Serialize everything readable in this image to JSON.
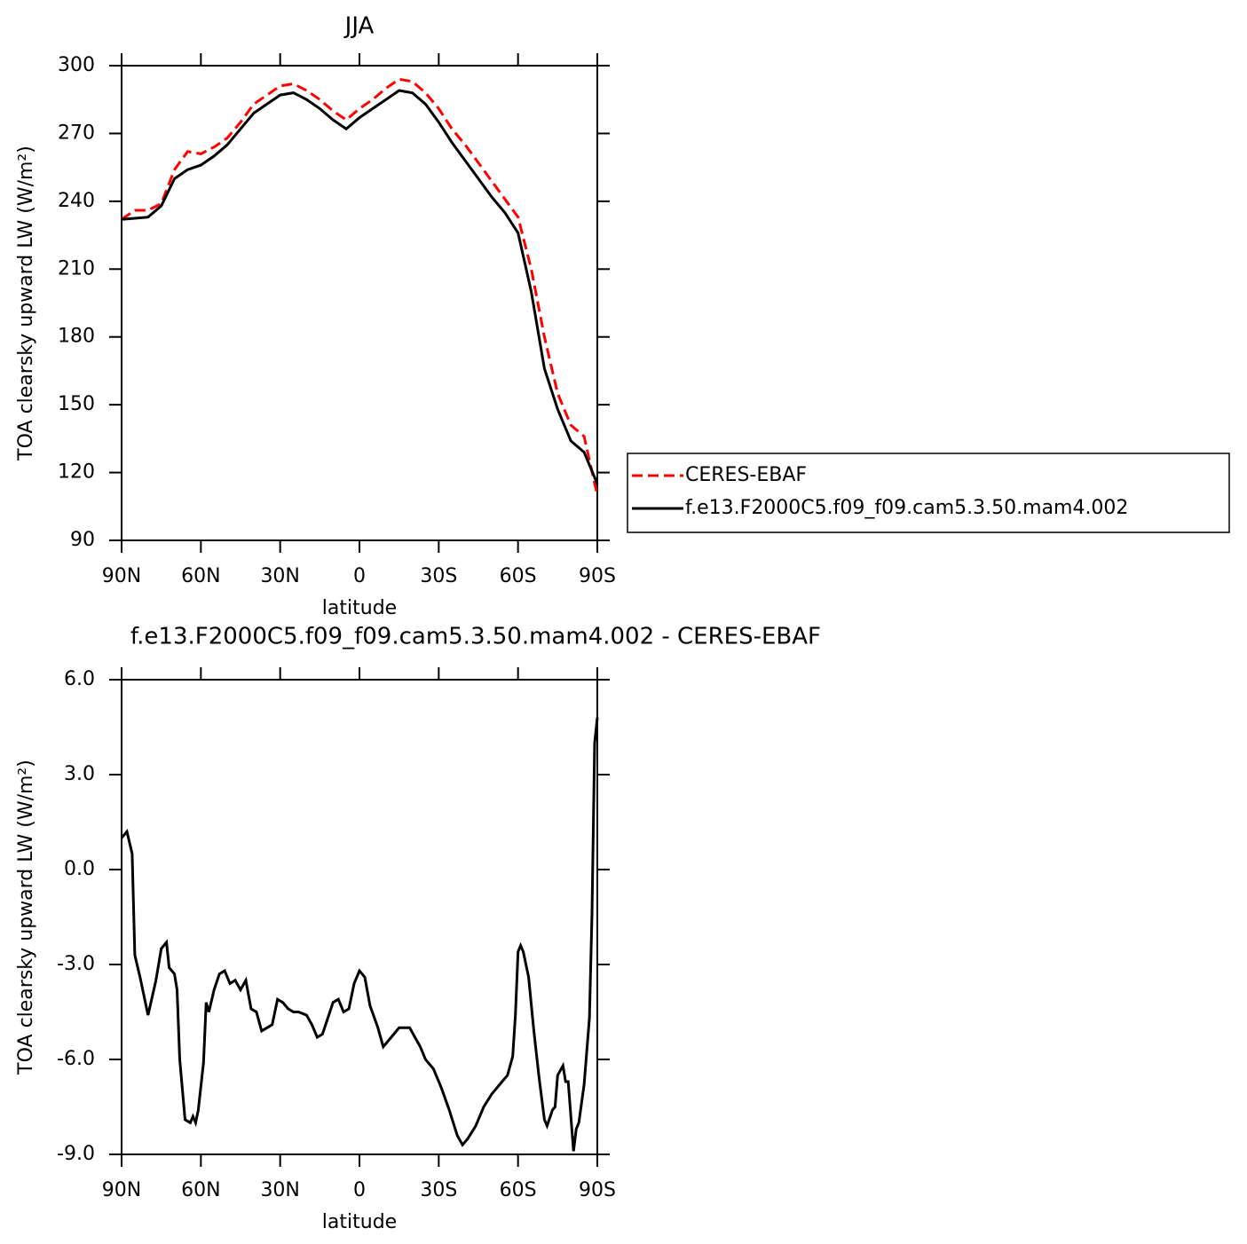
{
  "chart_data": [
    {
      "type": "line",
      "title": "JJA",
      "xlabel": "latitude",
      "ylabel": "TOA clearsky upward LW (W/m²)",
      "x": [
        90,
        85,
        80,
        75,
        70,
        65,
        60,
        55,
        50,
        45,
        40,
        35,
        30,
        25,
        20,
        15,
        10,
        5,
        0,
        -5,
        -10,
        -15,
        -20,
        -25,
        -30,
        -35,
        -40,
        -45,
        -50,
        -55,
        -60,
        -65,
        -70,
        -75,
        -80,
        -85,
        -90
      ],
      "series": [
        {
          "name": "CERES-EBAF",
          "color": "#ff0000",
          "linestyle": "dashed",
          "values": [
            232,
            236,
            236,
            239,
            254,
            262,
            261,
            264,
            268,
            275,
            283,
            287,
            291,
            292,
            289,
            285,
            280,
            276,
            281,
            285,
            290,
            294,
            293,
            288,
            281,
            272,
            265,
            257,
            249,
            241,
            233,
            210,
            180,
            155,
            141,
            136,
            110
          ]
        },
        {
          "name": "f.e13.F2000C5.f09_f09.cam5.3.50.mam4.002",
          "color": "#000000",
          "linestyle": "solid",
          "values": [
            232,
            232.5,
            233,
            238,
            250,
            254,
            256,
            260,
            265,
            272,
            279,
            283,
            287,
            288,
            285,
            281,
            276,
            272,
            277,
            281,
            285,
            289,
            288,
            283,
            275,
            266,
            258,
            250,
            242,
            235,
            226,
            200,
            166,
            148,
            134,
            129,
            115
          ]
        }
      ],
      "xlim": [
        90,
        -90
      ],
      "xticks": [
        {
          "value": 90,
          "label": "90N"
        },
        {
          "value": 60,
          "label": "60N"
        },
        {
          "value": 30,
          "label": "30N"
        },
        0,
        {
          "value": -30,
          "label": "30S"
        },
        {
          "value": -60,
          "label": "60S"
        },
        {
          "value": -90,
          "label": "90S"
        }
      ],
      "ylim": [
        90,
        300
      ],
      "yticks": [
        90,
        120,
        150,
        180,
        210,
        240,
        270,
        300
      ],
      "legend": "right"
    },
    {
      "type": "line",
      "title": "f.e13.F2000C5.f09_f09.cam5.3.50.mam4.002 - CERES-EBAF",
      "xlabel": "latitude",
      "ylabel": "TOA clearsky upward LW (W/m²)",
      "x": [
        90,
        88,
        86,
        85,
        83,
        80,
        77,
        75,
        73,
        72,
        70,
        69,
        68,
        66,
        64,
        63,
        62,
        61,
        59,
        58,
        57,
        55,
        53,
        51,
        49,
        47,
        45,
        43,
        41,
        39,
        37,
        35,
        33,
        31,
        29,
        27,
        25,
        23,
        20,
        18,
        16,
        14,
        12,
        10,
        8,
        6,
        4,
        2,
        0,
        -2,
        -4,
        -7,
        -9,
        -11,
        -13,
        -15,
        -17,
        -19,
        -21,
        -23,
        -25,
        -28,
        -31,
        -34,
        -37,
        -39,
        -41,
        -44,
        -47,
        -50,
        -53,
        -56,
        -58,
        -59,
        -60,
        -61,
        -62,
        -64,
        -66,
        -68,
        -70,
        -71,
        -73,
        -74,
        -75,
        -77,
        -78,
        -79,
        -81,
        -82,
        -83,
        -85,
        -87,
        -88,
        -89,
        -90
      ],
      "values": [
        1.0,
        1.2,
        0.5,
        -2.7,
        -3.4,
        -4.6,
        -3.5,
        -2.5,
        -2.3,
        -3.1,
        -3.3,
        -3.8,
        -6.0,
        -7.9,
        -8.0,
        -7.8,
        -8.0,
        -7.6,
        -6.1,
        -4.2,
        -4.5,
        -3.8,
        -3.3,
        -3.2,
        -3.6,
        -3.5,
        -3.8,
        -3.5,
        -4.4,
        -4.5,
        -5.1,
        -5.0,
        -4.9,
        -4.1,
        -4.2,
        -4.4,
        -4.5,
        -4.5,
        -4.6,
        -4.9,
        -5.3,
        -5.2,
        -4.7,
        -4.2,
        -4.1,
        -4.5,
        -4.4,
        -3.6,
        -3.2,
        -3.4,
        -4.3,
        -5.0,
        -5.6,
        -5.4,
        -5.2,
        -5.0,
        -5.0,
        -5.0,
        -5.3,
        -5.6,
        -6.0,
        -6.3,
        -6.9,
        -7.6,
        -8.4,
        -8.7,
        -8.5,
        -8.1,
        -7.5,
        -7.1,
        -6.8,
        -6.5,
        -5.9,
        -4.6,
        -2.6,
        -2.4,
        -2.6,
        -3.4,
        -5.1,
        -6.6,
        -7.9,
        -8.1,
        -7.6,
        -7.5,
        -6.5,
        -6.2,
        -6.7,
        -6.7,
        -8.9,
        -8.2,
        -8.0,
        -6.8,
        -4.7,
        -1.4,
        4.0,
        4.8
      ],
      "color": "#000000",
      "xlim": [
        90,
        -90
      ],
      "xticks": [
        {
          "value": 90,
          "label": "90N"
        },
        {
          "value": 60,
          "label": "60N"
        },
        {
          "value": 30,
          "label": "30N"
        },
        0,
        {
          "value": -30,
          "label": "30S"
        },
        {
          "value": -60,
          "label": "60S"
        },
        {
          "value": -90,
          "label": "90S"
        }
      ],
      "ylim": [
        -9,
        6
      ],
      "yticks": [
        {
          "value": -9,
          "label": "-9.0"
        },
        {
          "value": -6,
          "label": "-6.0"
        },
        {
          "value": -3,
          "label": "-3.0"
        },
        {
          "value": 0,
          "label": "0.0"
        },
        {
          "value": 3,
          "label": "3.0"
        },
        {
          "value": 6,
          "label": "6.0"
        }
      ]
    }
  ]
}
